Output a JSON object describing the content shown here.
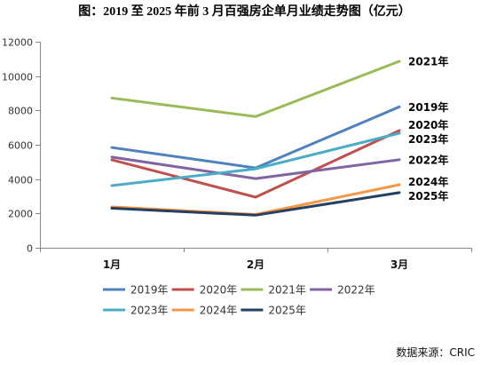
{
  "source": "数据来源：CRIC",
  "chart_data": {
    "type": "line",
    "title": "图：2019 至 2025 年前 3 月百强房企单月业绩走势图（亿元）",
    "categories": [
      "1月",
      "2月",
      "3月"
    ],
    "ylim": [
      0,
      12000
    ],
    "yticks": [
      0,
      2000,
      4000,
      6000,
      8000,
      10000,
      12000
    ],
    "grid": false,
    "legend": "bottom",
    "series": [
      {
        "name": "2019年",
        "color": "#4F81BD",
        "values": [
          5840,
          4650,
          8210
        ]
      },
      {
        "name": "2020年",
        "color": "#C0504D",
        "values": [
          5120,
          2950,
          6830
        ]
      },
      {
        "name": "2021年",
        "color": "#9BBB59",
        "values": [
          8720,
          7640,
          10860
        ]
      },
      {
        "name": "2022年",
        "color": "#8064A2",
        "values": [
          5280,
          4030,
          5130
        ]
      },
      {
        "name": "2023年",
        "color": "#4BACC6",
        "values": [
          3620,
          4600,
          6670
        ]
      },
      {
        "name": "2024年",
        "color": "#F79646",
        "values": [
          2380,
          1940,
          3670
        ]
      },
      {
        "name": "2025年",
        "color": "#243F60",
        "values": [
          2300,
          1900,
          3210
        ]
      }
    ]
  }
}
